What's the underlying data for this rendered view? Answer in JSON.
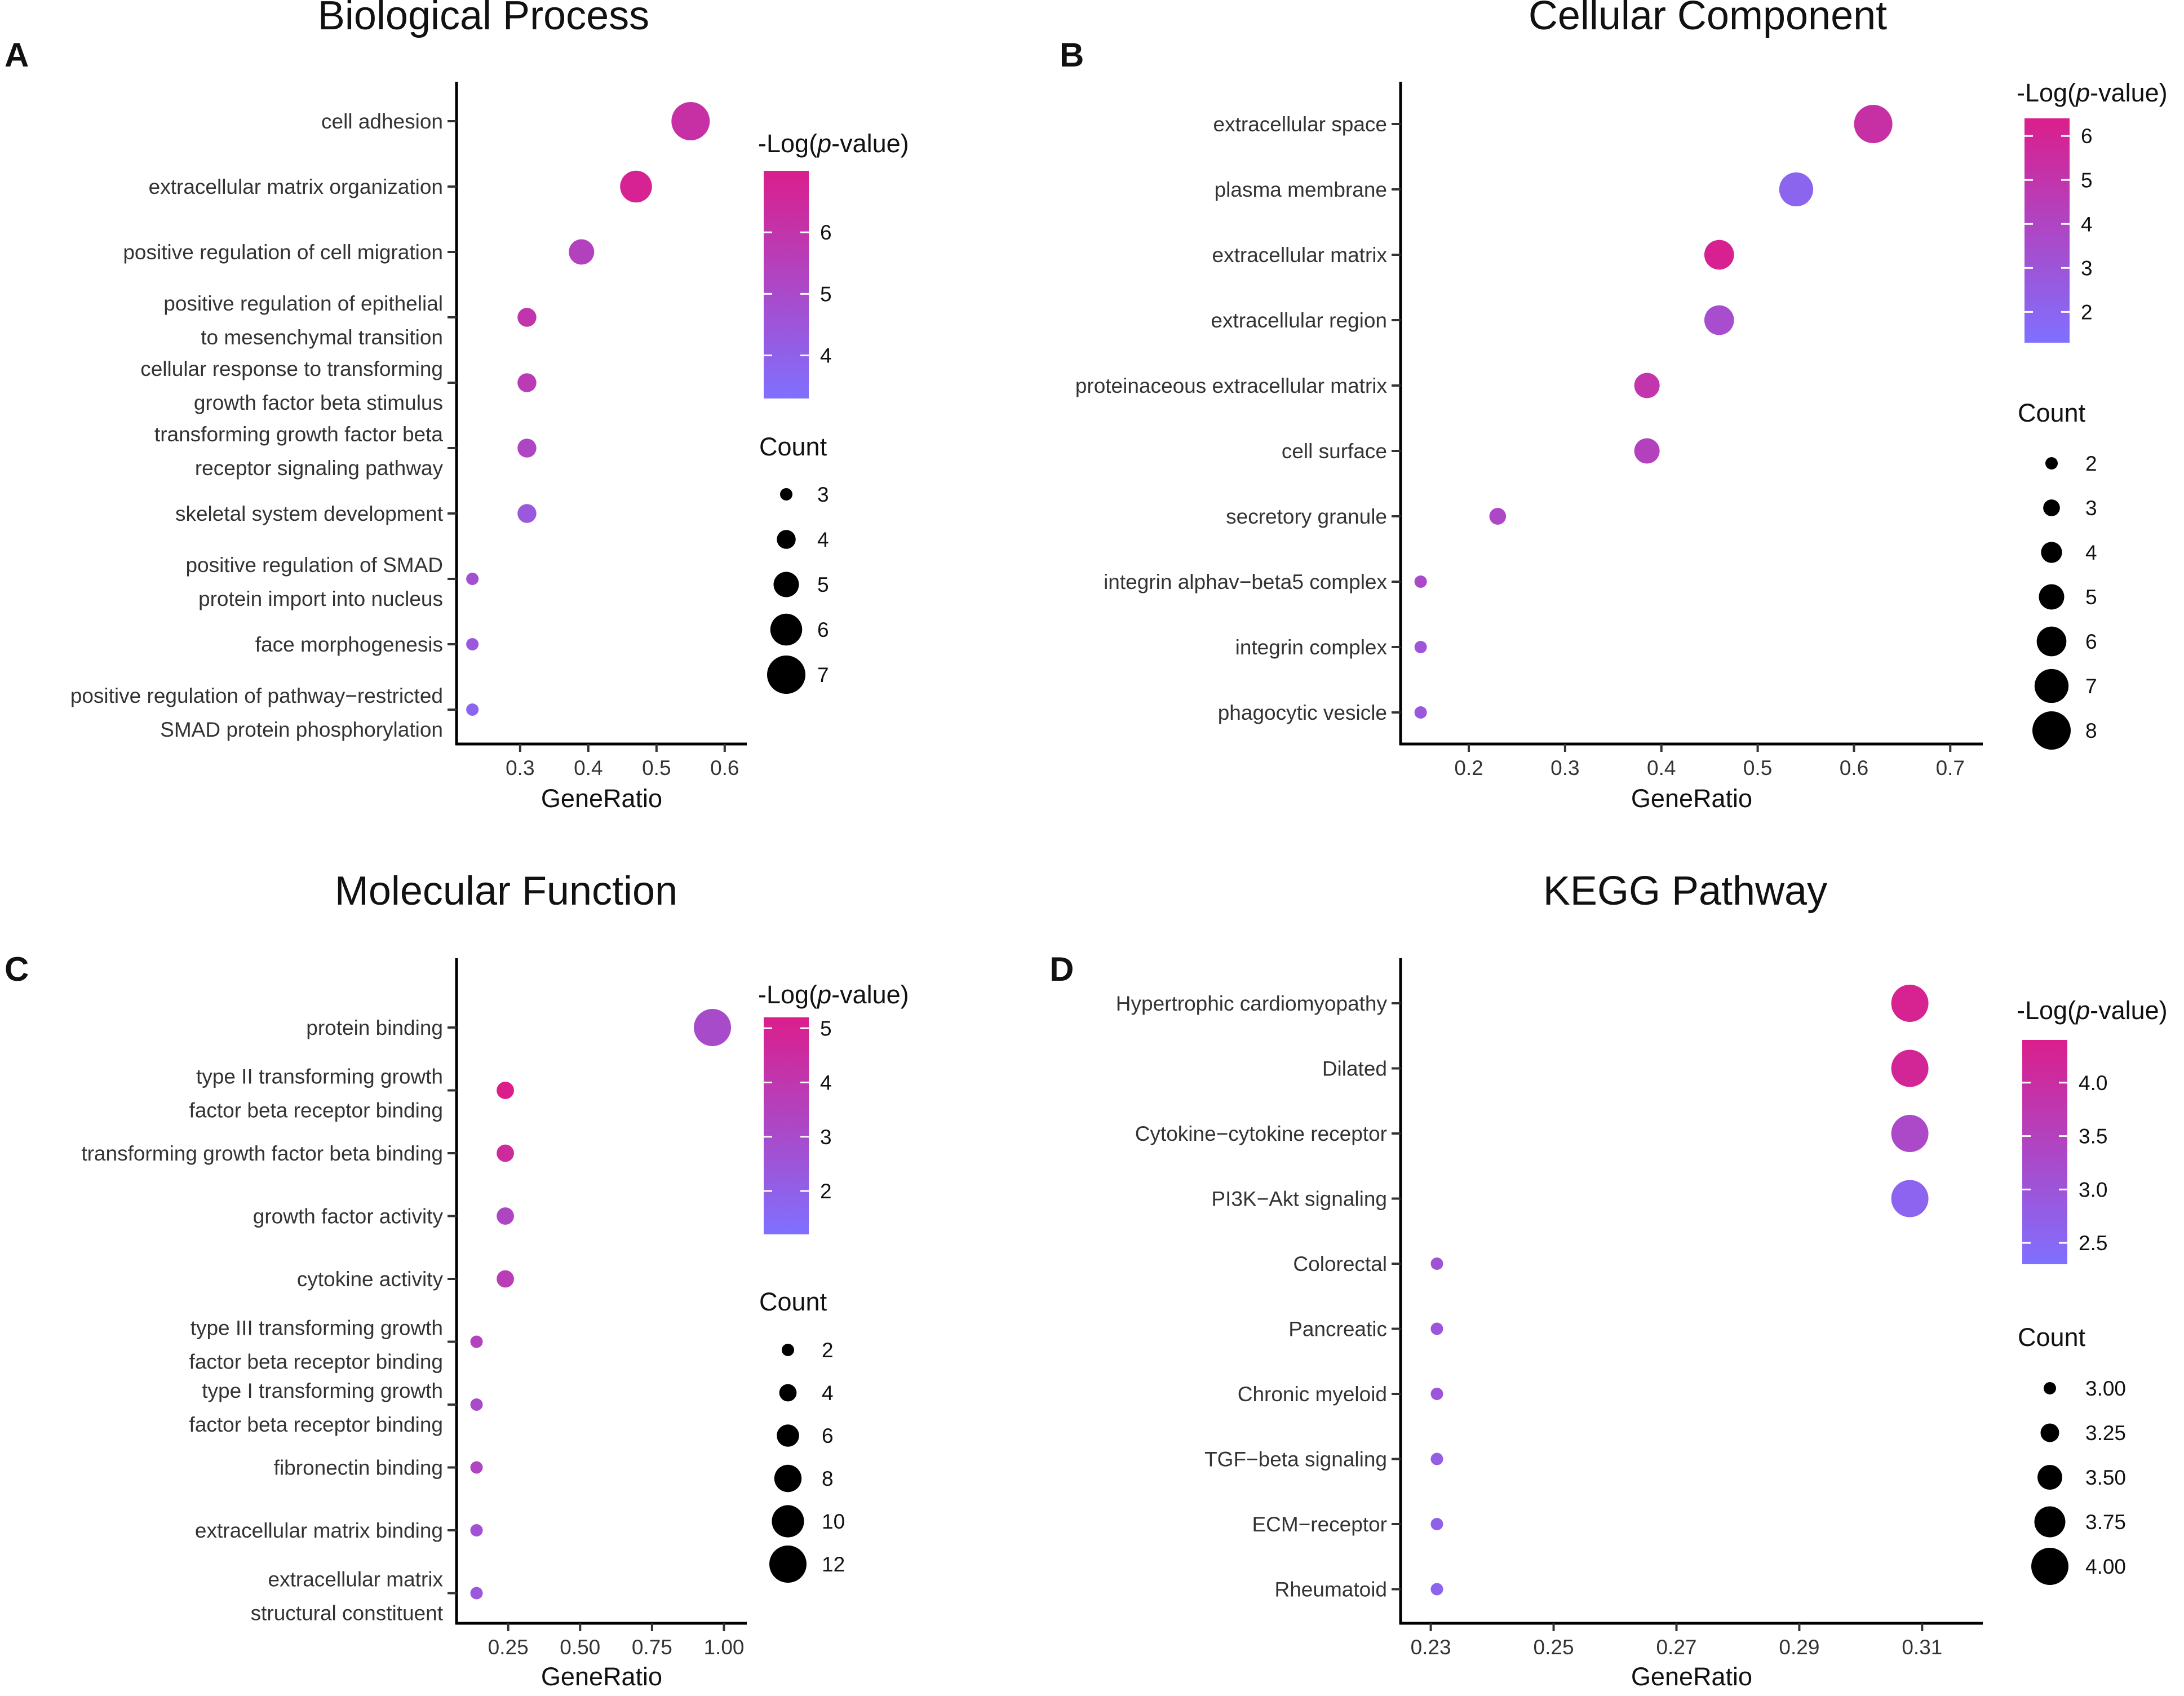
{
  "colors": {
    "low": "#7F70FF",
    "high": "#DB1E8C",
    "axis": "#000000",
    "text": "#333333"
  },
  "chart_data": [
    {
      "type": "scatter",
      "panel": "A",
      "title": "Biological Process",
      "xlabel": "GeneRatio",
      "ylabel": "",
      "xlim": [
        0.215,
        0.62
      ],
      "xticks": [
        "0.3",
        "0.4",
        "0.5",
        "0.6"
      ],
      "xtick_values": [
        0.3,
        0.4,
        0.5,
        0.6
      ],
      "categories": [
        "cell adhesion",
        "extracellular matrix organization",
        "positive regulation of cell migration",
        "positive regulation of epithelial\nto mesenchymal transition",
        "cellular response to transforming\ngrowth factor beta stimulus",
        "transforming growth factor beta\nreceptor signaling pathway",
        "skeletal system development",
        "positive regulation of SMAD\nprotein import into nucleus",
        "face morphogenesis",
        "positive regulation of pathway−restricted\nSMAD protein phosphorylation"
      ],
      "gene_ratio": [
        0.55,
        0.47,
        0.39,
        0.31,
        0.31,
        0.31,
        0.31,
        0.23,
        0.23,
        0.23
      ],
      "neg_log_p": [
        6.2,
        6.8,
        5.4,
        6.0,
        5.7,
        5.2,
        4.4,
        4.8,
        4.4,
        3.8
      ],
      "count": [
        7,
        6,
        5,
        4,
        4,
        4,
        4,
        3,
        3,
        3
      ],
      "color_legend": {
        "title": "-Log(",
        "title_italic": "p",
        "title_end": "-value)",
        "min": 3.3,
        "max": 7.0,
        "ticks": [
          "4",
          "5",
          "6"
        ],
        "tick_values": [
          4,
          5,
          6
        ]
      },
      "size_legend": {
        "title": "Count",
        "labels": [
          "3",
          "4",
          "5",
          "6",
          "7"
        ],
        "values": [
          3,
          4,
          5,
          6,
          7
        ],
        "min": 3,
        "max": 7
      }
    },
    {
      "type": "scatter",
      "panel": "B",
      "title": "Cellular Component",
      "xlabel": "GeneRatio",
      "ylabel": "",
      "xlim": [
        0.135,
        0.725
      ],
      "xticks": [
        "0.2",
        "0.3",
        "0.4",
        "0.5",
        "0.6",
        "0.7"
      ],
      "xtick_values": [
        0.2,
        0.3,
        0.4,
        0.5,
        0.6,
        0.7
      ],
      "categories": [
        "extracellular space",
        "plasma membrane",
        "extracellular matrix",
        "extracellular region",
        "proteinaceous extracellular matrix",
        "cell surface",
        "secretory granule",
        "integrin alphav−beta5 complex",
        "integrin complex",
        "phagocytic vesicle"
      ],
      "gene_ratio": [
        0.62,
        0.54,
        0.46,
        0.46,
        0.385,
        0.385,
        0.23,
        0.15,
        0.15,
        0.15
      ],
      "neg_log_p": [
        5.3,
        2.0,
        6.2,
        3.5,
        5.0,
        4.2,
        3.8,
        3.7,
        3.0,
        2.8
      ],
      "count": [
        8,
        7,
        6,
        6,
        5,
        5,
        3,
        2,
        2,
        2
      ],
      "color_legend": {
        "title": "-Log(",
        "title_italic": "p",
        "title_end": "-value)",
        "min": 1.3,
        "max": 6.4,
        "ticks": [
          "2",
          "3",
          "4",
          "5",
          "6"
        ],
        "tick_values": [
          2,
          3,
          4,
          5,
          6
        ]
      },
      "size_legend": {
        "title": "Count",
        "labels": [
          "2",
          "3",
          "4",
          "5",
          "6",
          "7",
          "8"
        ],
        "values": [
          2,
          3,
          4,
          5,
          6,
          7,
          8
        ],
        "min": 2,
        "max": 8
      }
    },
    {
      "type": "scatter",
      "panel": "C",
      "title": "Molecular Function",
      "xlabel": "GeneRatio",
      "ylabel": "",
      "xlim": [
        0.09,
        1.05
      ],
      "xticks": [
        "0.25",
        "0.50",
        "0.75",
        "1.00"
      ],
      "xtick_values": [
        0.25,
        0.5,
        0.75,
        1.0
      ],
      "categories": [
        "protein binding",
        "type II transforming growth\nfactor beta receptor binding",
        "transforming growth factor beta binding",
        "growth factor activity",
        "cytokine activity",
        "type III transforming growth\nfactor beta receptor binding",
        "type I transforming growth\nfactor beta receptor binding",
        "fibronectin binding",
        "extracellular matrix binding",
        "extracellular matrix\nstructural constituent"
      ],
      "gene_ratio": [
        0.96,
        0.24,
        0.24,
        0.24,
        0.24,
        0.14,
        0.14,
        0.14,
        0.14,
        0.14
      ],
      "neg_log_p": [
        3.0,
        5.2,
        4.6,
        3.3,
        3.7,
        3.5,
        3.0,
        3.3,
        2.7,
        2.4
      ],
      "count": [
        12,
        4,
        4,
        4,
        4,
        2,
        2,
        2,
        2,
        2
      ],
      "color_legend": {
        "title": "-Log(",
        "title_italic": "p",
        "title_end": "-value)",
        "min": 1.2,
        "max": 5.2,
        "ticks": [
          "2",
          "3",
          "4",
          "5"
        ],
        "tick_values": [
          2,
          3,
          4,
          5
        ]
      },
      "size_legend": {
        "title": "Count",
        "labels": [
          "2",
          "4",
          "6",
          "8",
          "10",
          "12"
        ],
        "values": [
          2,
          4,
          6,
          8,
          10,
          12
        ],
        "min": 2,
        "max": 12
      }
    },
    {
      "type": "scatter",
      "panel": "D",
      "title": "KEGG Pathway",
      "xlabel": "GeneRatio",
      "ylabel": "",
      "xlim": [
        0.226,
        0.3185
      ],
      "xticks": [
        "0.23",
        "0.25",
        "0.27",
        "0.29",
        "0.31"
      ],
      "xtick_values": [
        0.23,
        0.25,
        0.27,
        0.29,
        0.31
      ],
      "categories": [
        "Hypertrophic cardiomyopathy",
        "Dilated",
        "Cytokine−cytokine receptor",
        "PI3K−Akt signaling",
        "Colorectal",
        "Pancreatic",
        "Chronic myeloid",
        "TGF−beta signaling",
        "ECM−receptor",
        "Rheumatoid"
      ],
      "gene_ratio": [
        0.308,
        0.308,
        0.308,
        0.308,
        0.231,
        0.231,
        0.231,
        0.231,
        0.231,
        0.231
      ],
      "neg_log_p": [
        4.3,
        4.2,
        3.3,
        2.6,
        3.1,
        3.0,
        3.0,
        2.8,
        2.7,
        2.6
      ],
      "count": [
        4,
        4,
        4,
        4,
        3,
        3,
        3,
        3,
        3,
        3
      ],
      "color_legend": {
        "title": "-Log(",
        "title_italic": "p",
        "title_end": "-value)",
        "min": 2.3,
        "max": 4.4,
        "ticks": [
          "2.5",
          "3.0",
          "3.5",
          "4.0"
        ],
        "tick_values": [
          2.5,
          3.0,
          3.5,
          4.0
        ]
      },
      "size_legend": {
        "title": "Count",
        "labels": [
          "3.00",
          "3.25",
          "3.50",
          "3.75",
          "4.00"
        ],
        "values": [
          3.0,
          3.25,
          3.5,
          3.75,
          4.0
        ],
        "min": 3,
        "max": 4
      }
    }
  ]
}
